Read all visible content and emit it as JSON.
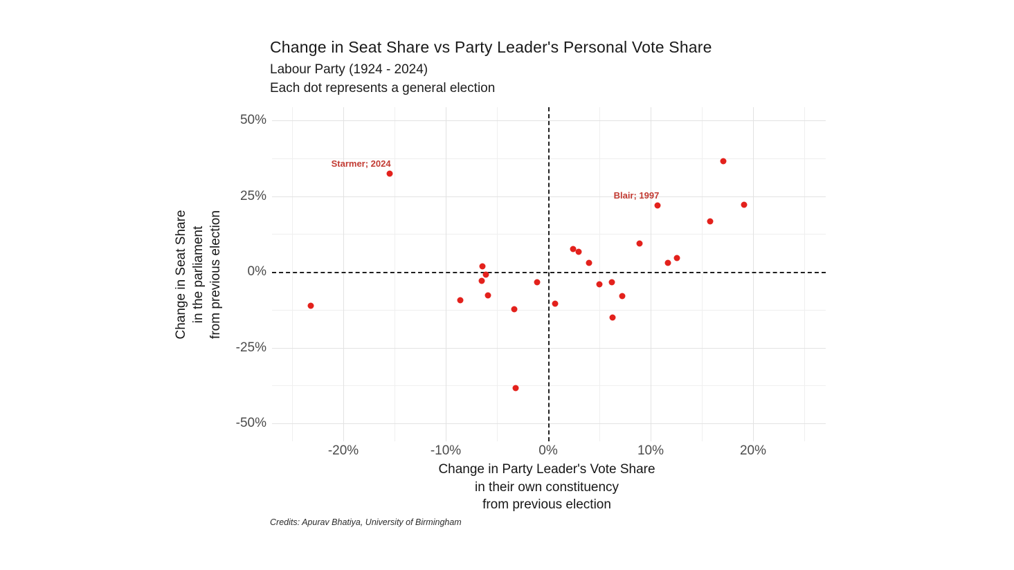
{
  "header": {
    "title": "Change in Seat Share vs Party Leader's Personal Vote Share",
    "subtitle": "Labour Party (1924 - 2024)",
    "caption": "Each dot represents a general election"
  },
  "credits": "Credits: Apurav Bhatiya, University of Birmingham",
  "colors": {
    "point": "#e3211c",
    "annotation": "#c23b33",
    "zero_line": "#1f1f1f",
    "grid_major": "#e2e2e2",
    "grid_minor": "#efefef",
    "tick_text": "#4b4b4b"
  },
  "chart_data": {
    "type": "scatter",
    "title": "Change in Seat Share vs Party Leader's Personal Vote Share",
    "subtitle": "Labour Party (1924 - 2024)",
    "note": "Each dot represents a general election",
    "xlabel": "Change in Party Leader's Vote Share\nin their own constituency\nfrom previous election",
    "ylabel": "Change in Seat Share\nin the parliament\nfrom previous election",
    "xlim": [
      -27,
      27
    ],
    "ylim": [
      -55,
      54
    ],
    "grid": "on",
    "legend": "none",
    "reference_lines": {
      "x": 0,
      "y": 0,
      "style": "dashed"
    },
    "x_ticks": [
      {
        "value": -20,
        "label": "-20%"
      },
      {
        "value": -10,
        "label": "-10%"
      },
      {
        "value": 0,
        "label": "0%"
      },
      {
        "value": 10,
        "label": "10%"
      },
      {
        "value": 20,
        "label": "20%"
      }
    ],
    "y_ticks": [
      {
        "value": 50,
        "label": "50%"
      },
      {
        "value": 25,
        "label": "25%"
      },
      {
        "value": 0,
        "label": "0%"
      },
      {
        "value": -25,
        "label": "-25%"
      },
      {
        "value": -50,
        "label": "-50%"
      }
    ],
    "x_grid_major": [
      -20,
      -10,
      10,
      20
    ],
    "x_grid_minor": [
      -25,
      -15,
      -5,
      5,
      15,
      25
    ],
    "y_grid_major": [
      -50,
      -25,
      25,
      50
    ],
    "y_grid_minor": [
      -37.5,
      -12.5,
      12.5,
      37.5
    ],
    "points": [
      {
        "x": -23.2,
        "y": -11.2
      },
      {
        "x": -15.5,
        "y": 32.4,
        "label": "Starmer; 2024"
      },
      {
        "x": -8.6,
        "y": -9.4
      },
      {
        "x": -6.4,
        "y": 1.8
      },
      {
        "x": -6.1,
        "y": -0.9
      },
      {
        "x": -6.5,
        "y": -3.0
      },
      {
        "x": -5.9,
        "y": -7.8
      },
      {
        "x": -3.3,
        "y": -12.3
      },
      {
        "x": -3.2,
        "y": -38.4
      },
      {
        "x": -1.1,
        "y": -3.4
      },
      {
        "x": 0.7,
        "y": -10.5
      },
      {
        "x": 2.4,
        "y": 7.5
      },
      {
        "x": 3.0,
        "y": 6.6
      },
      {
        "x": 4.0,
        "y": 3.0
      },
      {
        "x": 5.0,
        "y": -4.1
      },
      {
        "x": 6.2,
        "y": -3.4
      },
      {
        "x": 7.2,
        "y": -8.0
      },
      {
        "x": 6.3,
        "y": -15.1
      },
      {
        "x": 8.9,
        "y": 9.4
      },
      {
        "x": 10.7,
        "y": 21.9,
        "label": "Blair; 1997"
      },
      {
        "x": 11.7,
        "y": 3.0
      },
      {
        "x": 12.6,
        "y": 4.6
      },
      {
        "x": 15.8,
        "y": 16.7
      },
      {
        "x": 17.1,
        "y": 36.5
      },
      {
        "x": 19.1,
        "y": 22.2
      }
    ]
  }
}
